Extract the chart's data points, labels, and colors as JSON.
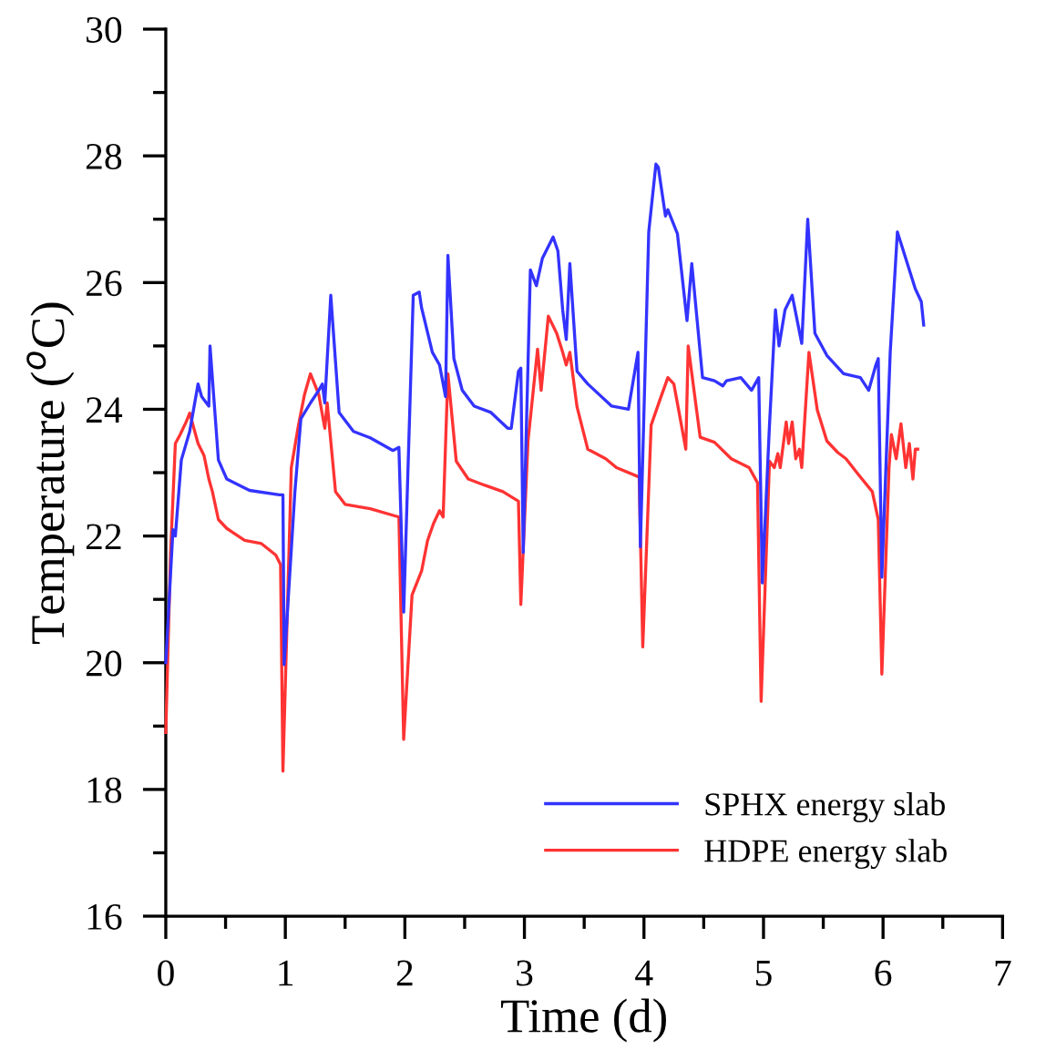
{
  "chart_data": {
    "type": "line",
    "xlabel": "Time (d)",
    "ylabel": "Temperature ($^{o}$C)",
    "xlim": [
      0,
      7
    ],
    "ylim": [
      16,
      30
    ],
    "xticks": [
      0,
      {
        "value": 0.5,
        "label": null
      },
      1,
      {
        "value": 1.5,
        "label": null
      },
      2,
      {
        "value": 2.5,
        "label": null
      },
      3,
      {
        "value": 3.5,
        "label": null
      },
      4,
      {
        "value": 4.5,
        "label": null
      },
      5,
      {
        "value": 5.5,
        "label": null
      },
      6,
      {
        "value": 6.5,
        "label": null
      },
      7
    ],
    "yticks": [
      16,
      {
        "value": 17,
        "label": null
      },
      18,
      {
        "value": 19,
        "label": null
      },
      20,
      {
        "value": 21,
        "label": null
      },
      22,
      {
        "value": 23,
        "label": null
      },
      24,
      {
        "value": 25,
        "label": null
      },
      26,
      {
        "value": 27,
        "label": null
      },
      28,
      {
        "value": 29,
        "label": null
      },
      30
    ],
    "grid": false,
    "legend": "bottom right",
    "marker": "none",
    "line_style": "solid",
    "series": [
      {
        "name": "SPHX energy slab",
        "color": "#3333ff",
        "x": [
          0,
          0.06,
          0.08,
          0.13,
          0.2,
          0.27,
          0.3,
          0.36,
          0.37,
          0.44,
          0.51,
          0.7,
          0.95,
          0.98,
          0.99,
          1.08,
          1.13,
          1.21,
          1.28,
          1.31,
          1.33,
          1.38,
          1.45,
          1.57,
          1.71,
          1.9,
          1.95,
          1.99,
          2.07,
          2.12,
          2.14,
          2.23,
          2.29,
          2.34,
          2.36,
          2.41,
          2.48,
          2.58,
          2.72,
          2.86,
          2.89,
          2.95,
          2.97,
          2.99,
          3.05,
          3.1,
          3.15,
          3.24,
          3.28,
          3.32,
          3.35,
          3.38,
          3.44,
          3.53,
          3.73,
          3.87,
          3.95,
          3.97,
          4.04,
          4.1,
          4.12,
          4.18,
          4.2,
          4.28,
          4.36,
          4.4,
          4.49,
          4.59,
          4.66,
          4.69,
          4.81,
          4.9,
          4.96,
          4.99,
          5.05,
          5.1,
          5.13,
          5.18,
          5.24,
          5.32,
          5.37,
          5.43,
          5.53,
          5.67,
          5.81,
          5.88,
          5.94,
          5.96,
          5.99,
          6.06,
          6.12,
          6.17,
          6.27,
          6.32,
          6.34
        ],
        "values": [
          20.0,
          22.1,
          22.0,
          23.2,
          23.65,
          24.4,
          24.2,
          24.05,
          25.0,
          23.2,
          22.9,
          22.72,
          22.65,
          22.65,
          19.97,
          22.7,
          23.85,
          24.1,
          24.3,
          24.4,
          24.1,
          25.8,
          23.95,
          23.65,
          23.55,
          23.35,
          23.4,
          20.8,
          25.8,
          25.85,
          25.6,
          24.9,
          24.7,
          24.2,
          26.43,
          24.8,
          24.3,
          24.05,
          23.95,
          23.7,
          23.7,
          24.6,
          24.65,
          21.74,
          26.2,
          25.95,
          26.38,
          26.72,
          26.5,
          25.57,
          25.1,
          26.3,
          24.6,
          24.4,
          24.05,
          24.0,
          24.9,
          21.83,
          26.8,
          27.87,
          27.82,
          27.05,
          27.15,
          26.77,
          25.4,
          26.3,
          24.5,
          24.45,
          24.37,
          24.45,
          24.5,
          24.3,
          24.5,
          21.26,
          23.75,
          25.57,
          25.0,
          25.57,
          25.8,
          25.04,
          27.0,
          25.2,
          24.85,
          24.56,
          24.5,
          24.3,
          24.7,
          24.8,
          21.35,
          24.9,
          26.8,
          26.5,
          25.9,
          25.7,
          25.33
        ]
      },
      {
        "name": "HDPE energy slab",
        "color": "#ff3333",
        "x": [
          0,
          0.04,
          0.08,
          0.12,
          0.17,
          0.2,
          0.27,
          0.32,
          0.36,
          0.39,
          0.44,
          0.51,
          0.66,
          0.8,
          0.92,
          0.96,
          0.98,
          1.05,
          1.11,
          1.16,
          1.21,
          1.28,
          1.33,
          1.35,
          1.42,
          1.5,
          1.71,
          1.95,
          1.99,
          2.06,
          2.14,
          2.19,
          2.24,
          2.29,
          2.32,
          2.36,
          2.43,
          2.53,
          2.67,
          2.82,
          2.95,
          2.97,
          3.03,
          3.11,
          3.14,
          3.2,
          3.27,
          3.32,
          3.35,
          3.38,
          3.44,
          3.53,
          3.68,
          3.77,
          3.96,
          3.99,
          4.06,
          4.13,
          4.2,
          4.25,
          4.29,
          4.35,
          4.37,
          4.47,
          4.59,
          4.73,
          4.88,
          4.95,
          4.98,
          5.05,
          5.09,
          5.12,
          5.14,
          5.19,
          5.21,
          5.24,
          5.27,
          5.3,
          5.32,
          5.38,
          5.45,
          5.53,
          5.62,
          5.69,
          5.79,
          5.91,
          5.96,
          5.99,
          6.05,
          6.07,
          6.11,
          6.15,
          6.19,
          6.22,
          6.25,
          6.27,
          6.29
        ],
        "values": [
          18.9,
          21.74,
          23.46,
          23.6,
          23.8,
          23.94,
          23.46,
          23.27,
          22.9,
          22.7,
          22.26,
          22.12,
          21.93,
          21.88,
          21.7,
          21.55,
          18.29,
          23.08,
          23.75,
          24.23,
          24.56,
          24.23,
          23.7,
          24.1,
          22.7,
          22.5,
          22.43,
          22.3,
          18.79,
          21.07,
          21.45,
          21.93,
          22.2,
          22.4,
          22.3,
          24.56,
          23.18,
          22.9,
          22.8,
          22.7,
          22.55,
          20.92,
          23.5,
          24.95,
          24.3,
          25.47,
          25.2,
          24.9,
          24.7,
          24.9,
          24.04,
          23.37,
          23.22,
          23.08,
          22.93,
          20.25,
          23.75,
          24.13,
          24.5,
          24.4,
          23.99,
          23.37,
          25.0,
          23.56,
          23.48,
          23.22,
          23.08,
          22.84,
          19.39,
          23.18,
          23.08,
          23.3,
          23.08,
          23.8,
          23.46,
          23.8,
          23.22,
          23.37,
          23.08,
          24.9,
          23.99,
          23.5,
          23.32,
          23.22,
          22.98,
          22.7,
          22.26,
          19.82,
          23.08,
          23.6,
          23.22,
          23.77,
          23.08,
          23.46,
          22.9,
          23.37,
          23.37
        ]
      }
    ]
  }
}
